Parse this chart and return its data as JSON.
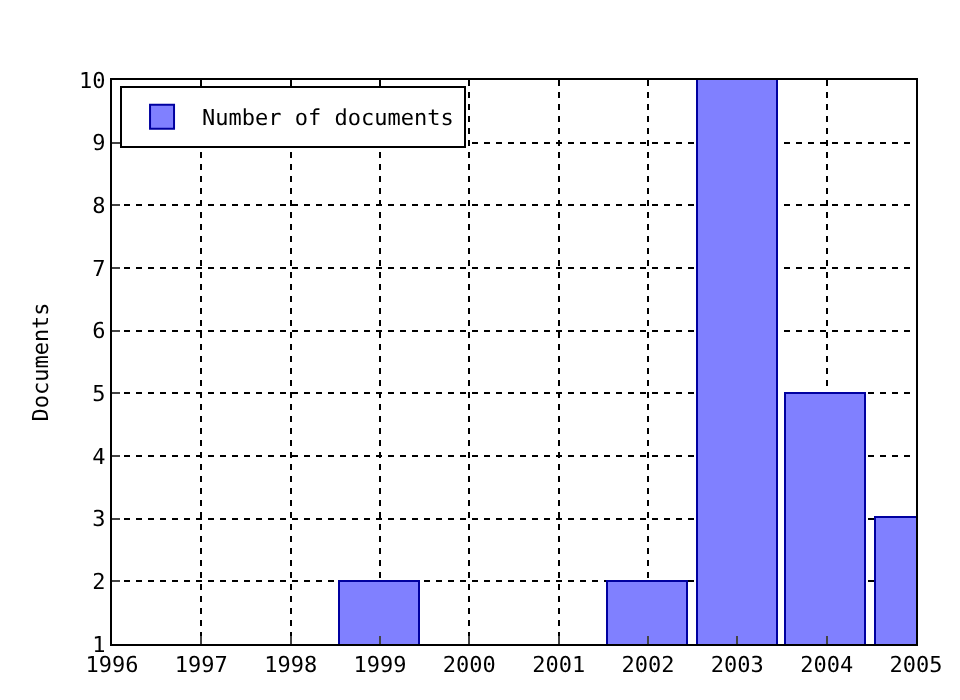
{
  "chart_data": {
    "type": "bar",
    "ylabel": "Documents",
    "x": [
      1999,
      2002,
      2003,
      2004,
      2005
    ],
    "series": [
      {
        "name": "Number of documents",
        "color": "#8080ff",
        "values": [
          2,
          2,
          10,
          5,
          3
        ]
      }
    ],
    "xlim": [
      1996,
      2005
    ],
    "xticks": [
      1996,
      1997,
      1998,
      1999,
      2000,
      2001,
      2002,
      2003,
      2004,
      2005
    ],
    "ylim": [
      1,
      10
    ],
    "yticks": [
      1,
      2,
      3,
      4,
      5,
      6,
      7,
      8,
      9,
      10
    ],
    "grid": true,
    "legend": "top left",
    "line_style": "dotted"
  }
}
